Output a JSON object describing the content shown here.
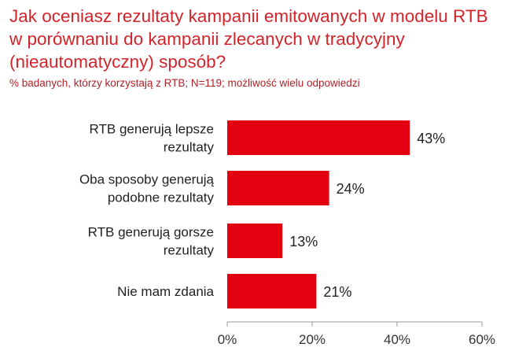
{
  "title_lines": [
    "Jak oceniasz rezultaty kampanii emitowanych w modelu RTB",
    "w porównaniu do kampanii zlecanych w tradycyjny",
    "(nieautomatyczny) sposób?"
  ],
  "subtitle": "% badanych, którzy korzystają z RTB; N=119; możliwość wielu odpowiedzi",
  "colors": {
    "bar": "#e3000f",
    "title": "#d2242b",
    "axis": "#9a9a9a"
  },
  "chart_data": {
    "type": "bar",
    "orientation": "horizontal",
    "title": "Jak oceniasz rezultaty kampanii emitowanych w modelu RTB w porównaniu do kampanii zlecanych w tradycyjny (nieautomatyczny) sposób?",
    "subtitle": "% badanych, którzy korzystają z RTB; N=119; możliwość wielu odpowiedzi",
    "categories": [
      [
        "RTB generują lepsze",
        "rezultaty"
      ],
      [
        "Oba sposoby generują",
        "podobne rezultaty"
      ],
      [
        "RTB generują gorsze",
        "rezultaty"
      ],
      [
        "Nie mam zdania"
      ]
    ],
    "values": [
      43,
      24,
      13,
      21
    ],
    "value_labels": [
      "43%",
      "24%",
      "13%",
      "21%"
    ],
    "xlim": [
      0,
      60
    ],
    "xticks": [
      0,
      20,
      40,
      60
    ],
    "xtick_labels": [
      "0%",
      "20%",
      "40%",
      "60%"
    ],
    "xlabel": "",
    "ylabel": "",
    "grid": false,
    "legend": false
  }
}
